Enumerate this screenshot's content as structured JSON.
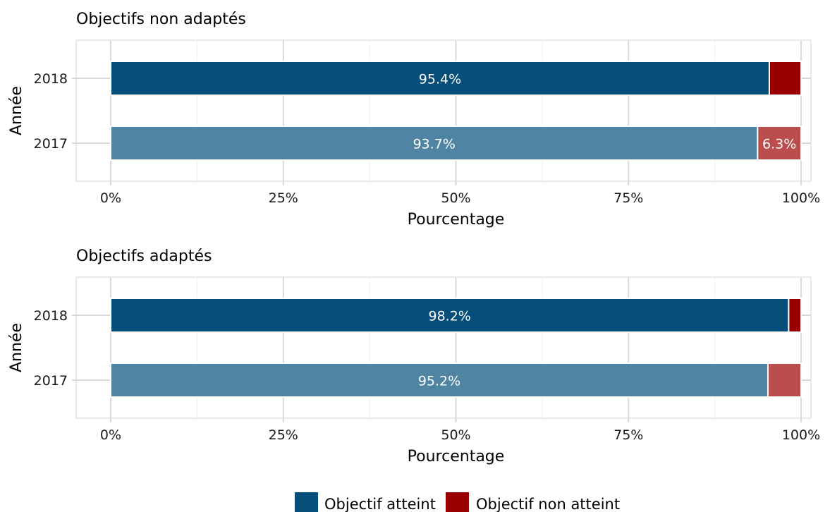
{
  "chart_data": [
    {
      "type": "bar",
      "orientation": "horizontal",
      "stacked": true,
      "title": "Objectifs non adaptés",
      "xlabel": "Pourcentage",
      "ylabel": "Année",
      "xlim": [
        0,
        100
      ],
      "x_ticks": [
        "0%",
        "25%",
        "50%",
        "75%",
        "100%"
      ],
      "categories": [
        "2018",
        "2017"
      ],
      "series": [
        {
          "name": "Objectif atteint",
          "values": [
            95.4,
            93.7
          ],
          "labels": [
            "95.4%",
            "93.7%"
          ]
        },
        {
          "name": "Objectif non atteint",
          "values": [
            4.6,
            6.3
          ],
          "labels": [
            "",
            "6.3%"
          ]
        }
      ],
      "grid": true
    },
    {
      "type": "bar",
      "orientation": "horizontal",
      "stacked": true,
      "title": "Objectifs adaptés",
      "xlabel": "Pourcentage",
      "ylabel": "Année",
      "xlim": [
        0,
        100
      ],
      "x_ticks": [
        "0%",
        "25%",
        "50%",
        "75%",
        "100%"
      ],
      "categories": [
        "2018",
        "2017"
      ],
      "series": [
        {
          "name": "Objectif atteint",
          "values": [
            98.2,
            95.2
          ],
          "labels": [
            "98.2%",
            "95.2%"
          ]
        },
        {
          "name": "Objectif non atteint",
          "values": [
            1.8,
            4.8
          ],
          "labels": [
            "",
            ""
          ]
        }
      ],
      "grid": true
    }
  ],
  "legend": {
    "position": "bottom",
    "items": [
      {
        "label": "Objectif atteint",
        "color": "#064E7A"
      },
      {
        "label": "Objectif non atteint",
        "color": "#9B0000"
      }
    ]
  },
  "colors": {
    "attained_2018": "#064E7A",
    "attained_2017": "#4F84A2",
    "not_attained_2018": "#9B0000",
    "not_attained_2017": "#BC4D4D"
  }
}
